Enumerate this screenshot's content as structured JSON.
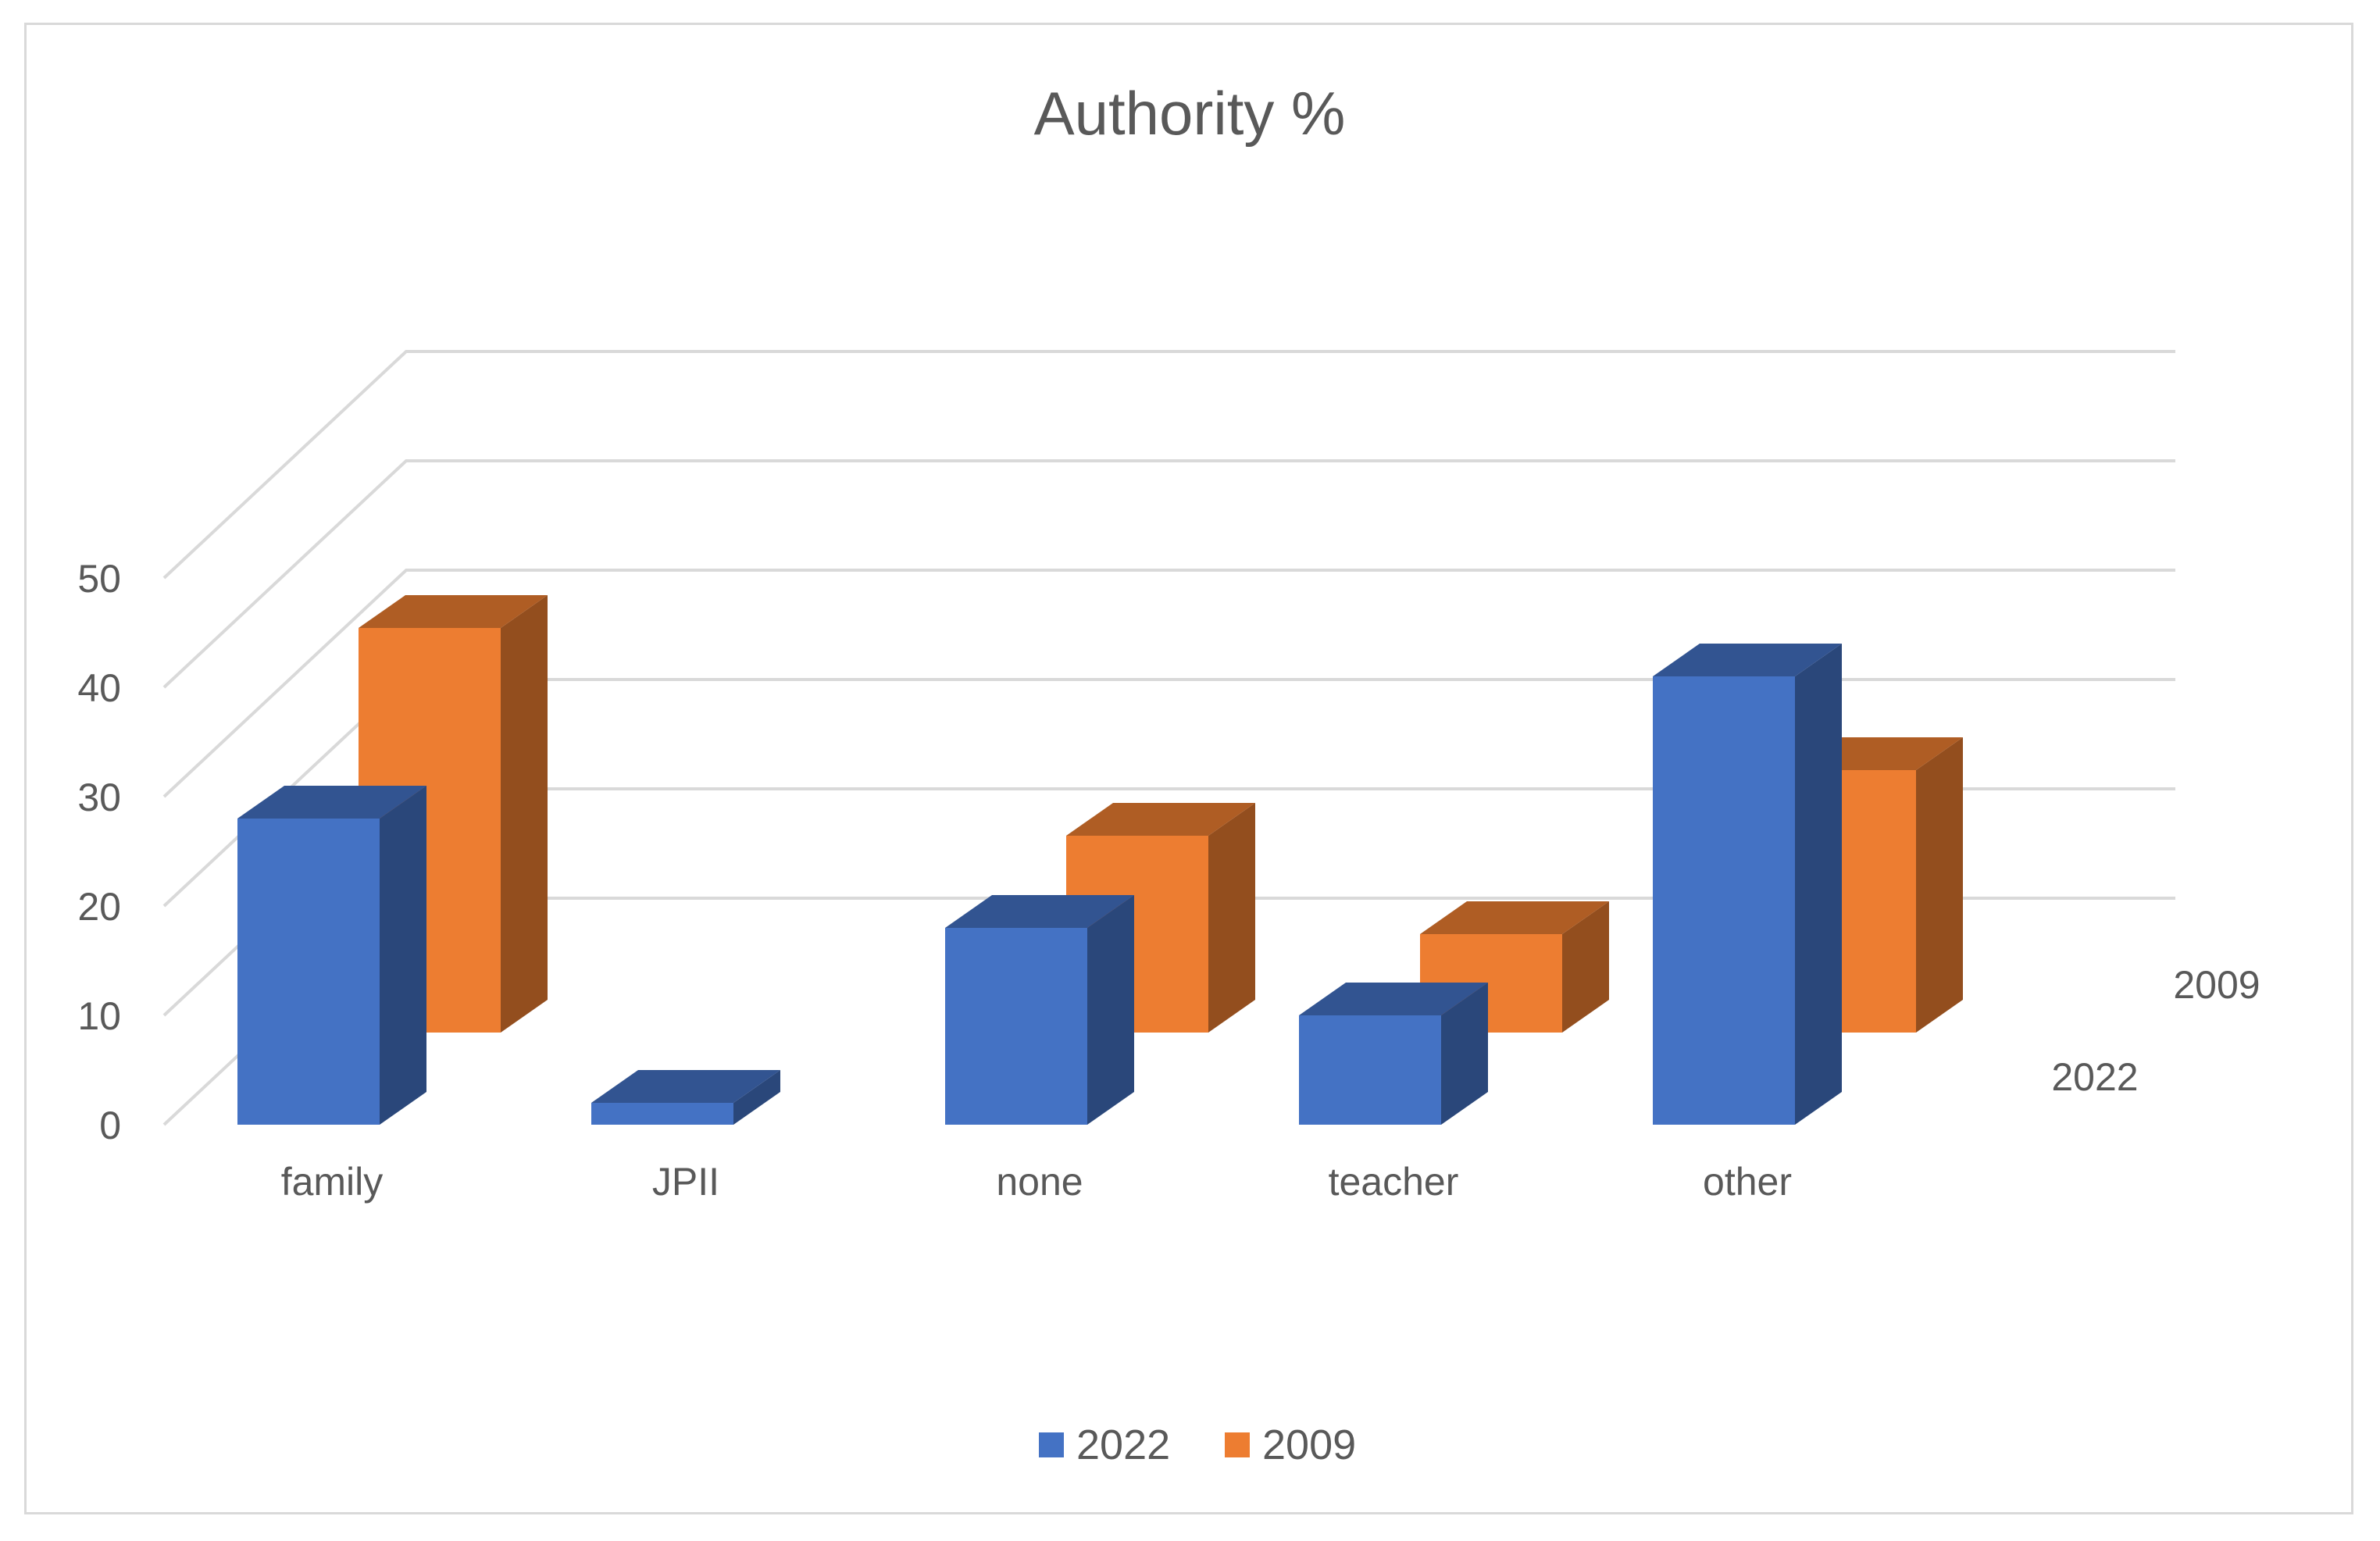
{
  "chart_data": {
    "type": "bar",
    "title": "Authority %",
    "categories": [
      "family",
      "JPII",
      "none",
      "teacher",
      "other"
    ],
    "series": [
      {
        "name": "2022",
        "values": [
          28,
          2,
          18,
          10,
          41
        ],
        "color": "#4472c4"
      },
      {
        "name": "2009",
        "values": [
          37,
          0,
          18,
          9,
          24
        ],
        "color": "#ed7d31"
      }
    ],
    "ylim": [
      0,
      50
    ],
    "yticks": [
      0,
      10,
      20,
      30,
      40,
      50
    ],
    "depth_labels": [
      "2009",
      "2022"
    ],
    "grid": true,
    "legend": "bottom",
    "style": "3d-column"
  }
}
